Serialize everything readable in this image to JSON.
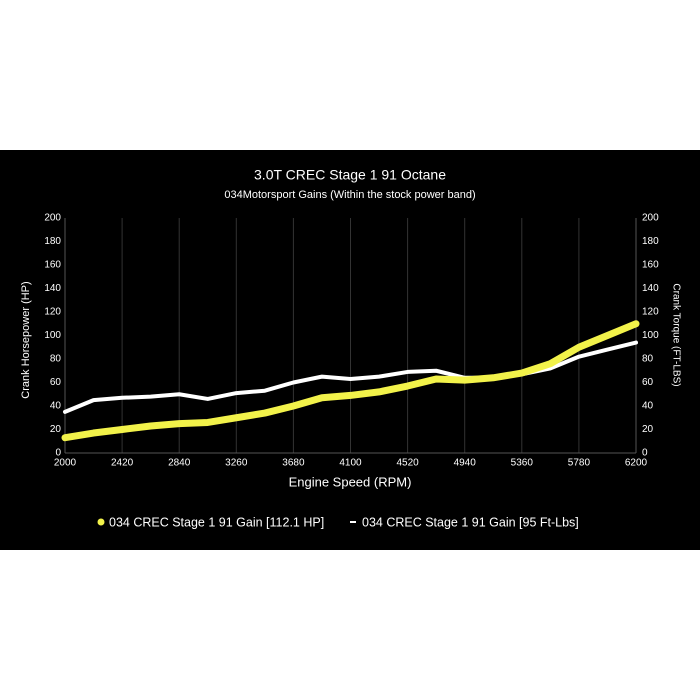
{
  "chart_data": {
    "type": "line",
    "title": "3.0T CREC Stage 1 91 Octane",
    "subtitle": "034Motorsport Gains (Within the stock power band)",
    "x_label": "Engine Speed (RPM)",
    "y_label": "Crank Horsepower (HP)",
    "y2_label": "Crank Torque (FT-LBS)",
    "x": [
      2000,
      2210,
      2420,
      2630,
      2840,
      3050,
      3260,
      3470,
      3680,
      3890,
      4100,
      4310,
      4520,
      4730,
      4940,
      5150,
      5360,
      5570,
      5780,
      5990,
      6200
    ],
    "series": [
      {
        "name": "034 CREC Stage 1 91 Gain [112.1 HP]",
        "color": "#f2f24a",
        "values": [
          13,
          17,
          20,
          23,
          25,
          26,
          30,
          34,
          40,
          47,
          49,
          52,
          57,
          63,
          62,
          64,
          68,
          76,
          90,
          100,
          110
        ]
      },
      {
        "name": "034 CREC Stage 1 91 Gain [95 Ft-Lbs]",
        "color": "#ffffff",
        "axis": "y2",
        "values": [
          35,
          45,
          47,
          48,
          50,
          46,
          51,
          53,
          60,
          65,
          63,
          65,
          69,
          70,
          64,
          64,
          67,
          72,
          82,
          88,
          94
        ]
      }
    ],
    "xlim": [
      2000,
      6200
    ],
    "xticks": [
      2000,
      2420,
      2840,
      3260,
      3680,
      4100,
      4520,
      4940,
      5360,
      5780,
      6200
    ],
    "ylim": [
      0,
      200
    ],
    "yticks": [
      0,
      20,
      40,
      60,
      80,
      100,
      120,
      140,
      160,
      180,
      200
    ],
    "y2lim": [
      0,
      200
    ],
    "y2ticks": [
      0,
      20,
      40,
      60,
      80,
      100,
      120,
      140,
      160,
      180,
      200
    ],
    "grid": true
  }
}
